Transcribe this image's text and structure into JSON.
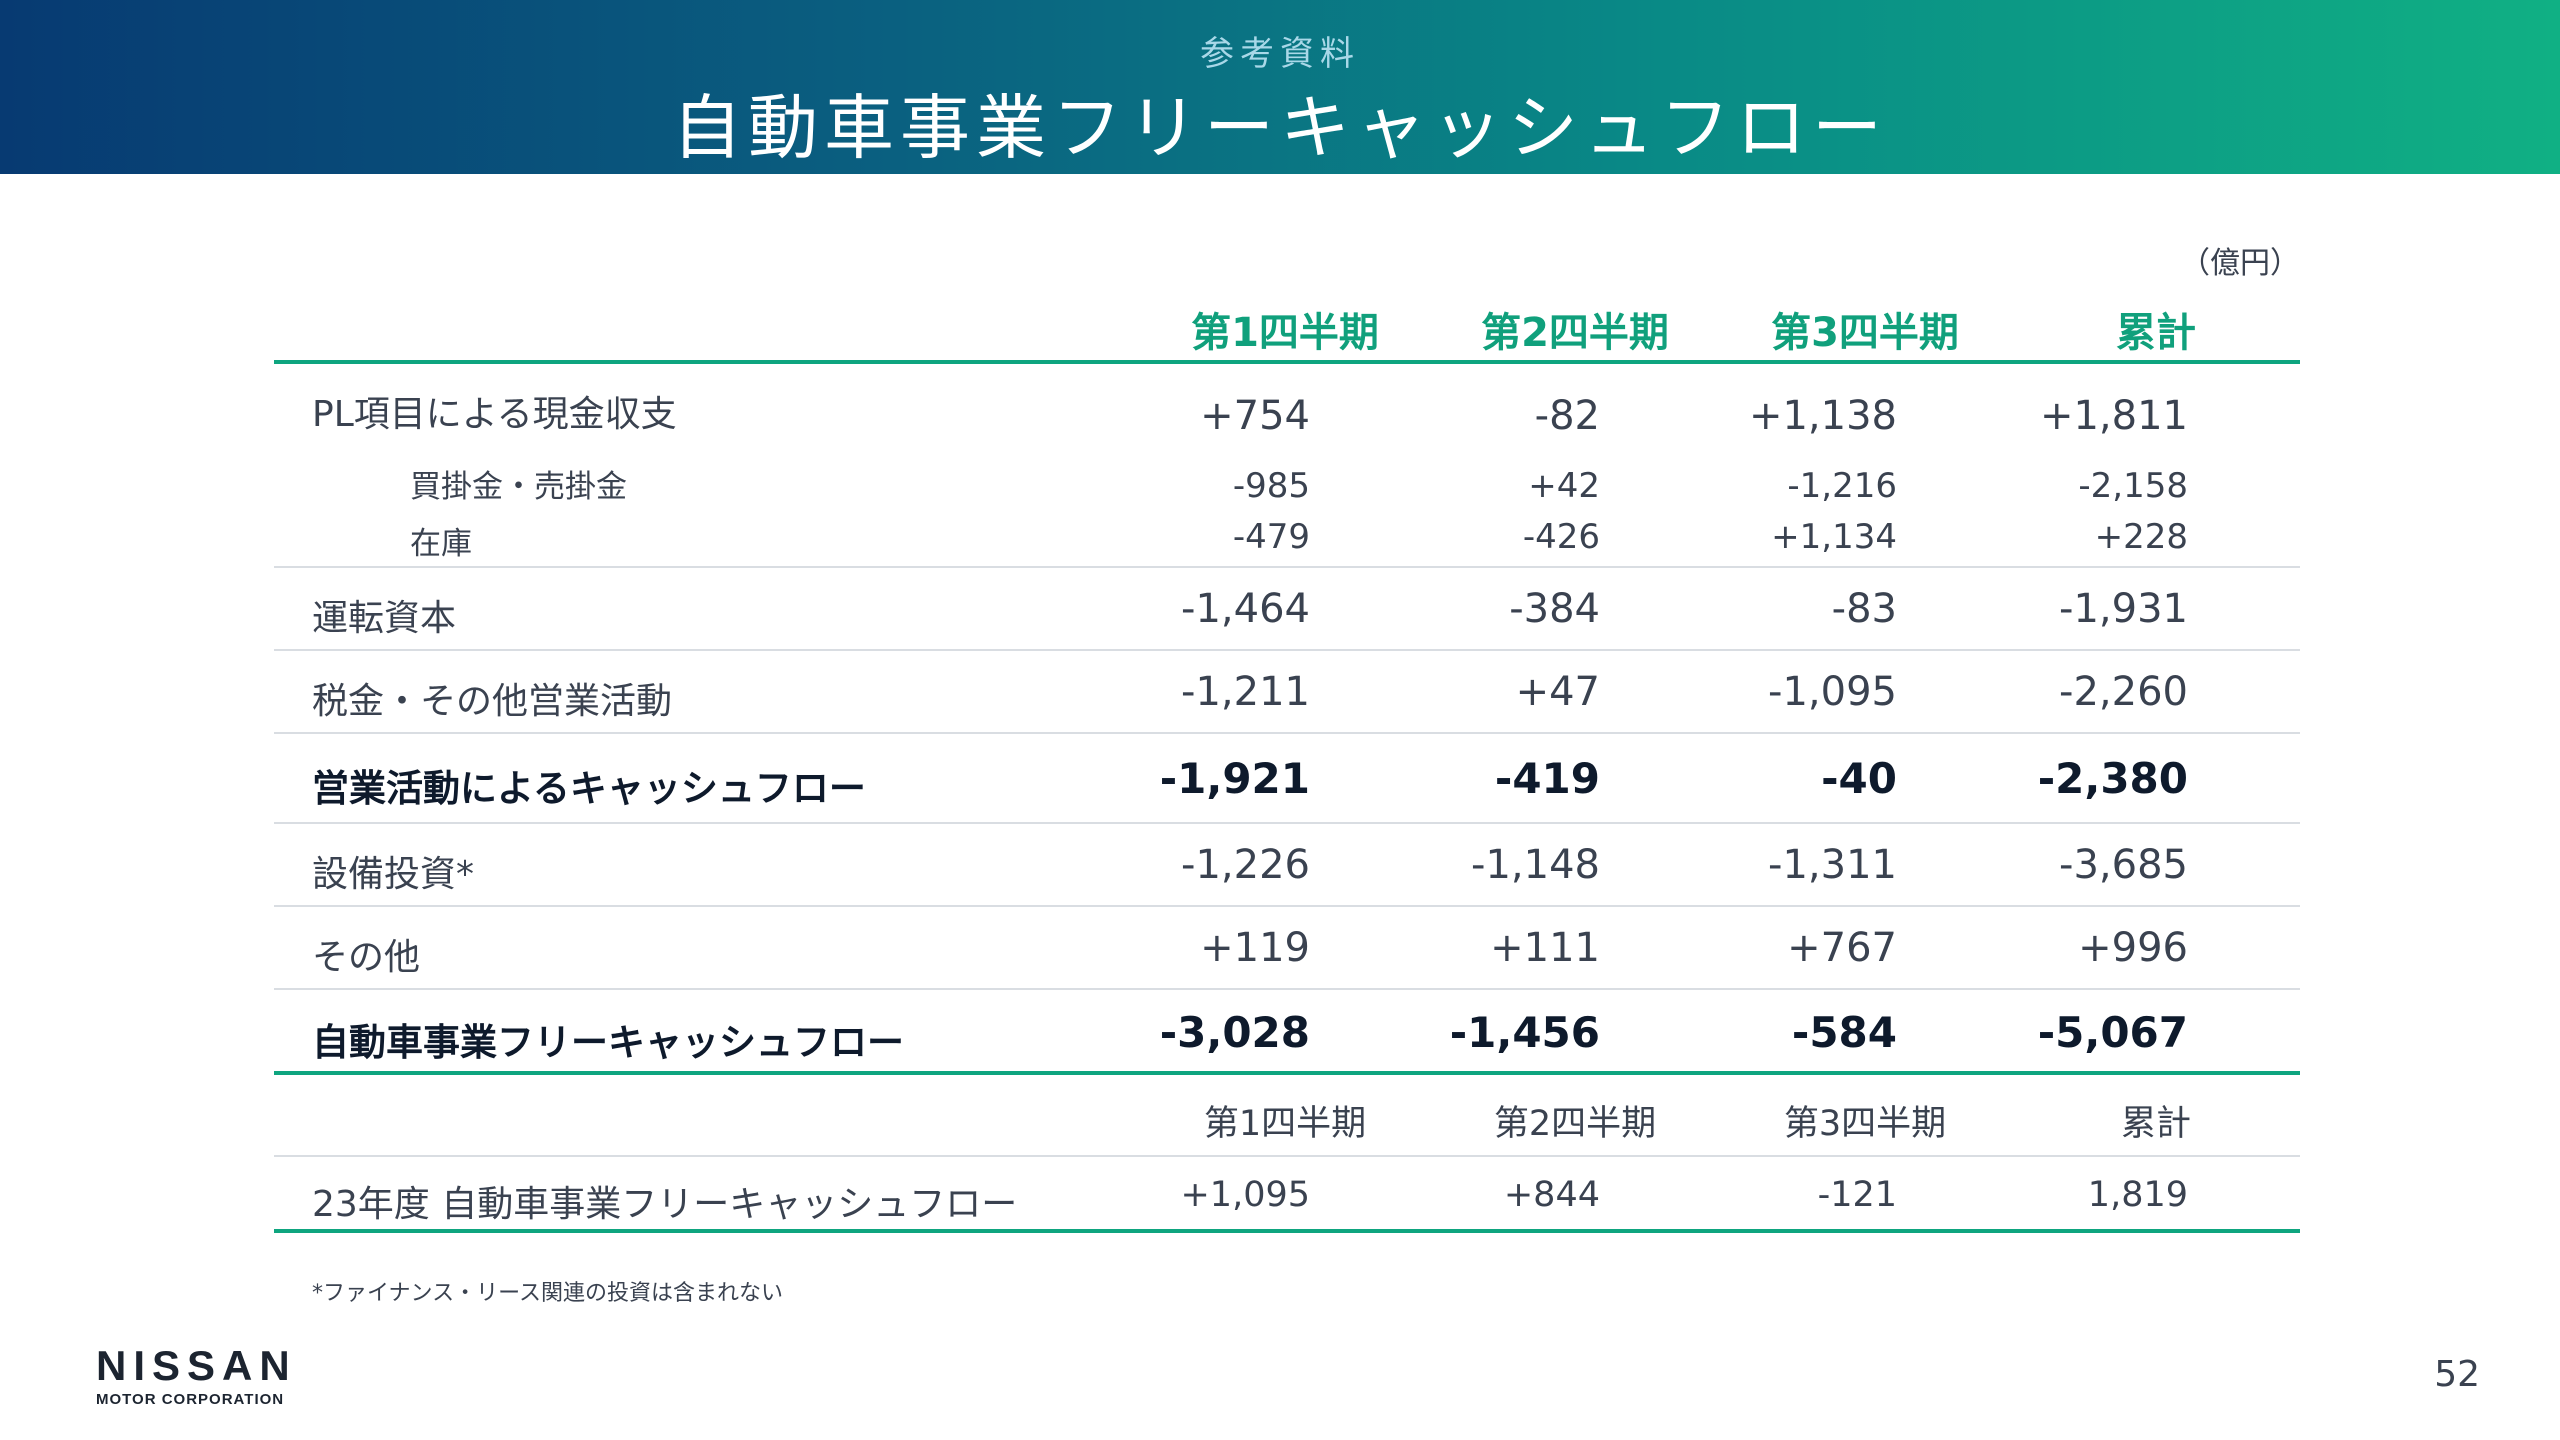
{
  "header": {
    "subtitle": "参考資料",
    "title": "自動車事業フリーキャッシュフロー"
  },
  "unit": "（億円）",
  "columns": [
    "第1四半期",
    "第2四半期",
    "第3四半期",
    "累計"
  ],
  "rows": [
    {
      "label": "PL項目による現金収支",
      "values": [
        "+754",
        "-82",
        "+1,138",
        "+1,811"
      ]
    },
    {
      "label": "買掛金・売掛金",
      "values": [
        "-985",
        "+42",
        "-1,216",
        "-2,158"
      ]
    },
    {
      "label": "在庫",
      "values": [
        "-479",
        "-426",
        "+1,134",
        "+228"
      ]
    },
    {
      "label": "運転資本",
      "values": [
        "-1,464",
        "-384",
        "-83",
        "-1,931"
      ]
    },
    {
      "label": "税金・その他営業活動",
      "values": [
        "-1,211",
        "+47",
        "-1,095",
        "-2,260"
      ]
    },
    {
      "label": "営業活動によるキャッシュフロー",
      "values": [
        "-1,921",
        "-419",
        "-40",
        "-2,380"
      ]
    },
    {
      "label": "設備投資*",
      "values": [
        "-1,226",
        "-1,148",
        "-1,311",
        "-3,685"
      ]
    },
    {
      "label": "その他",
      "values": [
        "+119",
        "+111",
        "+767",
        "+996"
      ]
    },
    {
      "label": "自動車事業フリーキャッシュフロー",
      "values": [
        "-3,028",
        "-1,456",
        "-584",
        "-5,067"
      ]
    }
  ],
  "comparison": {
    "columns": [
      "第1四半期",
      "第2四半期",
      "第3四半期",
      "累計"
    ],
    "label": "23年度 自動車事業フリーキャッシュフロー",
    "values": [
      "+1,095",
      "+844",
      "-121",
      "1,819"
    ]
  },
  "footnote": "*ファイナンス・リース関連の投資は含まれない",
  "logo": {
    "name": "NISSAN",
    "sub": "MOTOR CORPORATION"
  },
  "page_number": "52"
}
